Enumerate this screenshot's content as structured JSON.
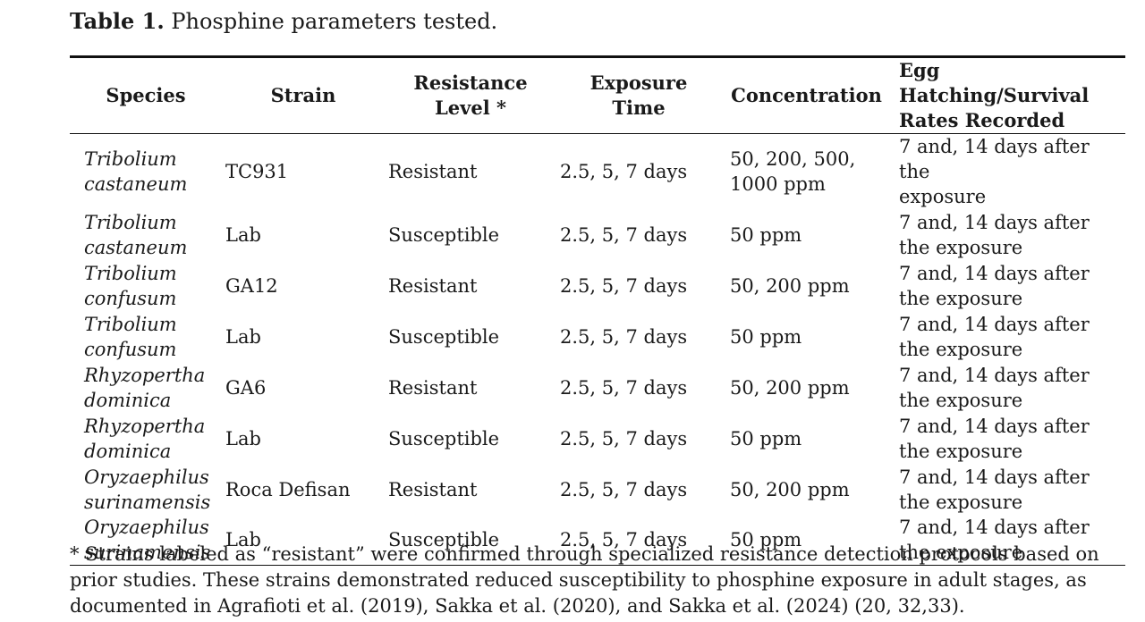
{
  "caption": {
    "label": "Table 1.",
    "text": "Phosphine parameters tested."
  },
  "table": {
    "headers": {
      "species": "Species",
      "strain": "Strain",
      "level_l1": "Resistance",
      "level_l2": "Level *",
      "time_l1": "Exposure",
      "time_l2": "Time",
      "concentration": "Concentration",
      "egg_l1": "Egg Hatching/Survival",
      "egg_l2": "Rates Recorded"
    },
    "rows": [
      {
        "species_l1": "Tribolium",
        "species_l2": "castaneum",
        "strain": "TC931",
        "level": "Resistant",
        "time": "2.5, 5, 7 days",
        "conc_l1": "50, 200, 500,",
        "conc_l2": "1000 ppm",
        "egg_l1": "7 and, 14 days after the",
        "egg_l2": "exposure"
      },
      {
        "species_l1": "Tribolium",
        "species_l2": "castaneum",
        "strain": "Lab",
        "level": "Susceptible",
        "time": "2.5, 5, 7 days",
        "conc_l1": "50 ppm",
        "conc_l2": "",
        "egg_l1": "7 and, 14 days after",
        "egg_l2": "the exposure"
      },
      {
        "species_l1": "Tribolium",
        "species_l2": "confusum",
        "strain": "GA12",
        "level": "Resistant",
        "time": "2.5, 5, 7 days",
        "conc_l1": "50, 200 ppm",
        "conc_l2": "",
        "egg_l1": "7 and, 14 days after",
        "egg_l2": "the exposure"
      },
      {
        "species_l1": "Tribolium",
        "species_l2": "confusum",
        "strain": "Lab",
        "level": "Susceptible",
        "time": "2.5, 5, 7 days",
        "conc_l1": "50 ppm",
        "conc_l2": "",
        "egg_l1": "7 and, 14 days after",
        "egg_l2": "the exposure"
      },
      {
        "species_l1": "Rhyzopertha",
        "species_l2": "dominica",
        "strain": "GA6",
        "level": "Resistant",
        "time": "2.5, 5, 7 days",
        "conc_l1": "50, 200 ppm",
        "conc_l2": "",
        "egg_l1": "7 and, 14 days after",
        "egg_l2": "the exposure"
      },
      {
        "species_l1": "Rhyzopertha",
        "species_l2": "dominica",
        "strain": "Lab",
        "level": "Susceptible",
        "time": "2.5, 5, 7 days",
        "conc_l1": "50 ppm",
        "conc_l2": "",
        "egg_l1": "7 and, 14 days after",
        "egg_l2": "the exposure"
      },
      {
        "species_l1": "Oryzaephilus",
        "species_l2": "surinamensis",
        "strain": "Roca Defisan",
        "level": "Resistant",
        "time": "2.5, 5, 7 days",
        "conc_l1": "50, 200 ppm",
        "conc_l2": "",
        "egg_l1": "7 and, 14 days after",
        "egg_l2": "the exposure"
      },
      {
        "species_l1": "Oryzaephilus",
        "species_l2": "surinamensis",
        "strain": "Lab",
        "level": "Susceptible",
        "time": "2.5, 5, 7 days",
        "conc_l1": "50 ppm",
        "conc_l2": "",
        "egg_l1": "7 and, 14 days after",
        "egg_l2": "the exposure"
      }
    ]
  },
  "footnote": "* Strains labeled as “resistant” were confirmed through specialized resistance detection protocols based on prior studies. These strains demonstrated reduced susceptibility to phosphine exposure in adult stages, as documented in Agrafioti et al. (2019), Sakka et al. (2020), and Sakka et al. (2024) (20, 32,33)."
}
